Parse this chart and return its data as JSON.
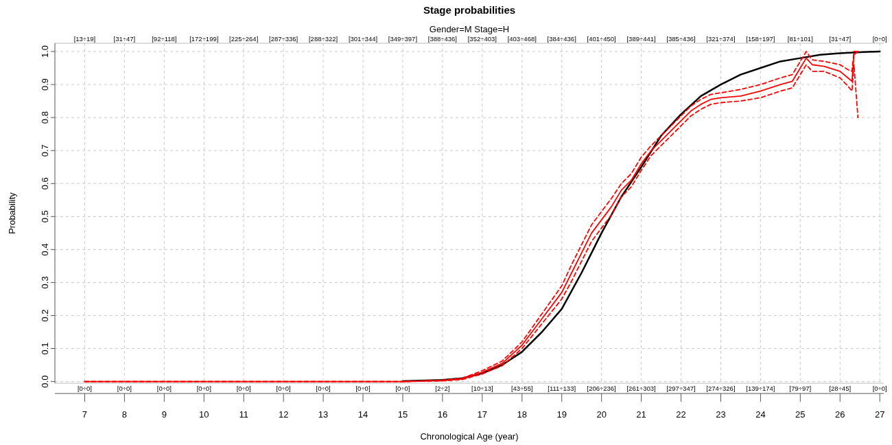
{
  "chart_data": {
    "type": "line",
    "title": "Stage probabilities",
    "subtitle": "Gender=M Stage=H",
    "xlabel": "Chronological Age (year)",
    "ylabel": "Probability",
    "xlim": [
      6.25,
      27.1
    ],
    "ylim": [
      -0.005,
      1.025
    ],
    "xticks": [
      7,
      8,
      9,
      10,
      11,
      12,
      13,
      14,
      15,
      16,
      17,
      18,
      19,
      20,
      21,
      22,
      23,
      24,
      25,
      26,
      27
    ],
    "yticks": [
      {
        "value": 0,
        "label": "0.0"
      },
      {
        "value": 0.1,
        "label": "0.1"
      },
      {
        "value": 0.2,
        "label": "0.2"
      },
      {
        "value": 0.3,
        "label": "0.3"
      },
      {
        "value": 0.4,
        "label": "0.4"
      },
      {
        "value": 0.5,
        "label": "0.5"
      },
      {
        "value": 0.6,
        "label": "0.6"
      },
      {
        "value": 0.7,
        "label": "0.7"
      },
      {
        "value": 0.8,
        "label": "0.8"
      },
      {
        "value": 0.9,
        "label": "0.9"
      },
      {
        "value": 1,
        "label": "1.0"
      }
    ],
    "annotations": [
      "[13÷19]",
      "[31÷47]",
      "[92÷118]",
      "[172÷199]",
      "[225÷264]",
      "[287÷336]",
      "[288÷322]",
      "[301÷344]",
      "[349÷397]",
      "[388÷436]",
      "[352÷403]",
      "[403÷468]",
      "[384÷436]",
      "[401÷450]",
      "[389÷441]",
      "[385÷436]",
      "[321÷374]",
      "[158÷197]",
      "[81÷101]",
      "[31÷47]",
      "[0÷0]",
      "[0÷0]",
      "[0÷0]",
      "[0÷0]",
      "[0÷0]",
      "[0÷0]",
      "[0÷0]",
      "[0÷0]",
      "[0÷0]",
      "[0÷0]",
      "[2÷2]",
      "[10÷13]",
      "[43÷55]",
      "[111÷133]",
      "[206÷236]",
      "[261÷303]",
      "[297÷347]",
      "[274÷326]",
      "[139÷174]",
      "[79÷97]",
      "[28÷45]",
      "[0÷0]"
    ],
    "grid": true,
    "series": [
      {
        "color": "#000000",
        "line_style": "solid",
        "x": [
          15,
          16,
          16.5,
          17,
          17.5,
          18,
          18.5,
          19,
          19.5,
          20,
          20.5,
          21,
          21.5,
          22,
          22.5,
          23,
          23.5,
          24,
          24.5,
          25,
          25.5,
          26,
          26.5,
          27
        ],
        "values": [
          0.001,
          0.005,
          0.01,
          0.025,
          0.05,
          0.09,
          0.15,
          0.22,
          0.33,
          0.45,
          0.56,
          0.65,
          0.745,
          0.81,
          0.865,
          0.9,
          0.93,
          0.95,
          0.97,
          0.98,
          0.99,
          0.995,
          0.998,
          1
        ]
      },
      {
        "color": "#ff0000",
        "line_style": "solid",
        "x": [
          7,
          15,
          16,
          16.5,
          17,
          17.5,
          18,
          18.5,
          19,
          19.25,
          19.5,
          19.75,
          20,
          20.25,
          20.5,
          20.75,
          21,
          21.25,
          21.5,
          21.75,
          22,
          22.25,
          22.5,
          22.75,
          23,
          23.5,
          24,
          24.5,
          24.8,
          25,
          25.15,
          25.3,
          25.6,
          26,
          26.2,
          26.3,
          26.35,
          26.45
        ],
        "values": [
          0,
          0,
          0.003,
          0.008,
          0.028,
          0.055,
          0.11,
          0.19,
          0.27,
          0.33,
          0.39,
          0.45,
          0.49,
          0.53,
          0.58,
          0.61,
          0.66,
          0.7,
          0.73,
          0.76,
          0.79,
          0.82,
          0.84,
          0.855,
          0.86,
          0.865,
          0.88,
          0.9,
          0.91,
          0.95,
          0.98,
          0.96,
          0.955,
          0.94,
          0.92,
          0.91,
          0.99,
          1
        ]
      },
      {
        "color": "#ff0000",
        "line_style": "dashed",
        "x": [
          7,
          15,
          16,
          16.5,
          17,
          17.5,
          18,
          18.5,
          19,
          19.25,
          19.5,
          19.75,
          20,
          20.25,
          20.5,
          20.75,
          21,
          21.25,
          21.5,
          21.75,
          22,
          22.25,
          22.5,
          22.75,
          23,
          23.5,
          24,
          24.5,
          24.8,
          25,
          25.15,
          25.3,
          25.6,
          26,
          26.2,
          26.3,
          26.35,
          26.45
        ],
        "values": [
          0,
          0,
          0.004,
          0.01,
          0.033,
          0.062,
          0.12,
          0.205,
          0.29,
          0.355,
          0.415,
          0.475,
          0.515,
          0.555,
          0.6,
          0.63,
          0.68,
          0.715,
          0.745,
          0.775,
          0.805,
          0.835,
          0.855,
          0.87,
          0.875,
          0.885,
          0.9,
          0.92,
          0.93,
          0.97,
          1,
          0.975,
          0.97,
          0.96,
          0.945,
          0.94,
          1,
          1
        ]
      },
      {
        "color": "#ff0000",
        "line_style": "dashed",
        "x": [
          7,
          15,
          16,
          16.5,
          17,
          17.5,
          18,
          18.5,
          19,
          19.25,
          19.5,
          19.75,
          20,
          20.25,
          20.5,
          20.75,
          21,
          21.25,
          21.5,
          21.75,
          22,
          22.25,
          22.5,
          22.75,
          23,
          23.5,
          24,
          24.5,
          24.8,
          25,
          25.15,
          25.3,
          25.6,
          26,
          26.2,
          26.3,
          26.35,
          26.45
        ],
        "values": [
          0,
          0,
          0.002,
          0.006,
          0.023,
          0.048,
          0.1,
          0.175,
          0.25,
          0.305,
          0.365,
          0.425,
          0.465,
          0.505,
          0.56,
          0.59,
          0.64,
          0.685,
          0.715,
          0.745,
          0.775,
          0.805,
          0.825,
          0.84,
          0.845,
          0.85,
          0.86,
          0.88,
          0.89,
          0.93,
          0.96,
          0.94,
          0.94,
          0.92,
          0.895,
          0.88,
          0.96,
          0.8
        ]
      }
    ]
  }
}
